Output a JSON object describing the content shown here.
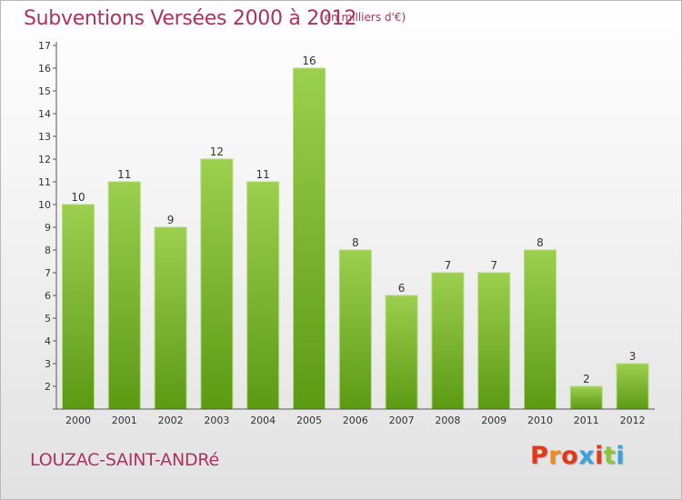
{
  "header": {
    "title": "Subventions Versées 2000 à 2012",
    "unit_note": "(en milliers d'€)"
  },
  "footer": {
    "commune": "LOUZAC-SAINT-ANDRé",
    "logo_text": "Proxiti"
  },
  "colors": {
    "title": "#b0305e",
    "bar_top": "#9ccf4e",
    "bar_bottom": "#5c9a14",
    "logo_letters": [
      "#e2391b",
      "#f08a1c",
      "#e2391b",
      "#3ba3dc",
      "#e2391b",
      "#8bc53f",
      "#3ba3dc"
    ]
  },
  "chart_data": {
    "type": "bar",
    "title": "Subventions Versées 2000 à 2012",
    "categories": [
      "2000",
      "2001",
      "2002",
      "2003",
      "2004",
      "2005",
      "2006",
      "2007",
      "2008",
      "2009",
      "2010",
      "2011",
      "2012"
    ],
    "values": [
      10,
      11,
      9,
      12,
      11,
      16,
      8,
      6,
      7,
      7,
      8,
      2,
      3
    ],
    "ylim": [
      1,
      17
    ],
    "yticks": [
      "17",
      "16",
      "15",
      "14",
      "13",
      "12",
      "11",
      "10",
      "9",
      "8",
      "7",
      "6",
      "5",
      "4",
      "3",
      "2"
    ],
    "grid": false,
    "legend": "none"
  }
}
